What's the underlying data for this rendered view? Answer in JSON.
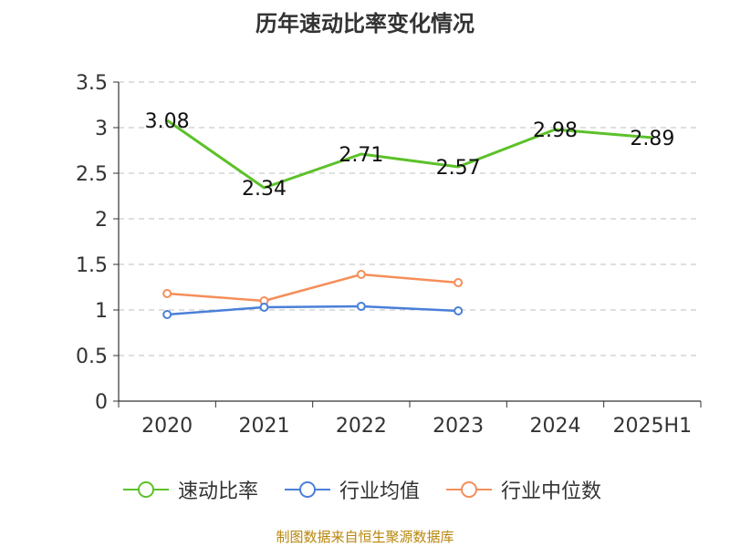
{
  "chart_data": {
    "type": "line",
    "title": "历年速动比率变化情况",
    "categories": [
      "2020",
      "2021",
      "2022",
      "2023",
      "2024",
      "2025H1"
    ],
    "ylim": [
      0,
      3.5
    ],
    "yticks": [
      0,
      0.5,
      1,
      1.5,
      2,
      2.5,
      3,
      3.5
    ],
    "ytick_labels": [
      "0",
      "0.5",
      "1",
      "1.5",
      "2",
      "2.5",
      "3",
      "3.5"
    ],
    "grid": true,
    "legend_position": "bottom",
    "series": [
      {
        "name": "速动比率",
        "color": "#5cc12a",
        "values": [
          3.08,
          2.34,
          2.71,
          2.57,
          2.98,
          2.89
        ],
        "data_labels": [
          "3.08",
          "2.34",
          "2.71",
          "2.57",
          "2.98",
          "2.89"
        ]
      },
      {
        "name": "行业均值",
        "color": "#4a7fd8",
        "values": [
          0.95,
          1.03,
          1.04,
          0.99,
          null,
          null
        ]
      },
      {
        "name": "行业中位数",
        "color": "#f58e59",
        "values": [
          1.18,
          1.1,
          1.39,
          1.3,
          null,
          null
        ]
      }
    ]
  },
  "source_note": "制图数据来自恒生聚源数据库"
}
